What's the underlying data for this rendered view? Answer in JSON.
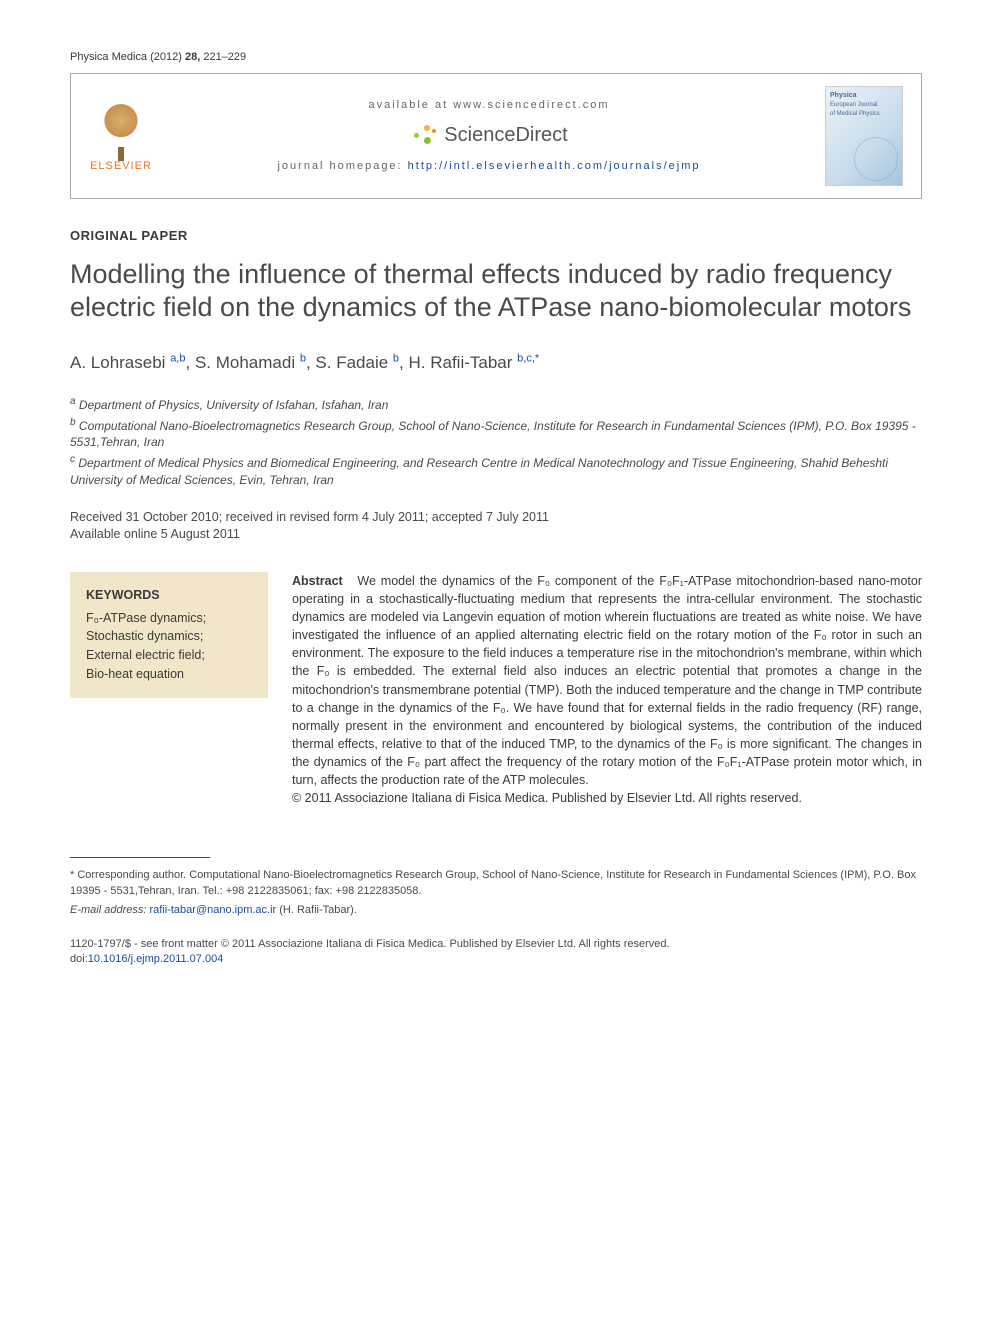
{
  "citation": {
    "journal": "Physica Medica",
    "year": "(2012)",
    "volume": "28,",
    "pages": "221–229"
  },
  "header": {
    "elsevier": "ELSEVIER",
    "available": "available at www.sciencedirect.com",
    "sciencedirect": "ScienceDirect",
    "homepage_label": "journal homepage: ",
    "homepage_url": "http://intl.elsevierhealth.com/journals/ejmp",
    "cover_line1": "Physica",
    "cover_line2": "European Journal",
    "cover_line3": "of Medical Physics"
  },
  "paper_type": "ORIGINAL PAPER",
  "title": "Modelling the influence of thermal effects induced by radio frequency electric field on the dynamics of the ATPase nano-biomolecular motors",
  "authors": [
    {
      "name": "A. Lohrasebi",
      "aff": "a,b"
    },
    {
      "name": "S. Mohamadi",
      "aff": "b"
    },
    {
      "name": "S. Fadaie",
      "aff": "b"
    },
    {
      "name": "H. Rafii-Tabar",
      "aff": "b,c,*"
    }
  ],
  "affiliations": {
    "a": "Department of Physics, University of Isfahan, Isfahan, Iran",
    "b": "Computational Nano-Bioelectromagnetics Research Group, School of Nano-Science, Institute for Research in Fundamental Sciences (IPM), P.O. Box 19395 - 5531,Tehran, Iran",
    "c": "Department of Medical Physics and Biomedical Engineering, and Research Centre in Medical Nanotechnology and Tissue Engineering, Shahid Beheshti University of Medical Sciences, Evin, Tehran, Iran"
  },
  "dates": {
    "line1": "Received 31 October 2010; received in revised form 4 July 2011; accepted 7 July 2011",
    "line2": "Available online 5 August 2011"
  },
  "keywords": {
    "heading": "KEYWORDS",
    "items": "F₀-ATPase dynamics;\nStochastic dynamics;\nExternal electric field;\nBio-heat equation"
  },
  "abstract": {
    "label": "Abstract",
    "text": "We model the dynamics of the F₀ component of the F₀F₁-ATPase mitochondrion-based nano-motor operating in a stochastically-fluctuating medium that represents the intra-cellular environment. The stochastic dynamics are modeled via Langevin equation of motion wherein fluctuations are treated as white noise. We have investigated the influence of an applied alternating electric field on the rotary motion of the F₀ rotor in such an environment. The exposure to the field induces a temperature rise in the mitochondrion's membrane, within which the F₀ is embedded. The external field also induces an electric potential that promotes a change in the mitochondrion's transmembrane potential (TMP). Both the induced temperature and the change in TMP contribute to a change in the dynamics of the F₀. We have found that for external fields in the radio frequency (RF) range, normally present in the environment and encountered by biological systems, the contribution of the induced thermal effects, relative to that of the induced TMP, to the dynamics of the F₀ is more significant. The changes in the dynamics of the F₀ part affect the frequency of the rotary motion of the F₀F₁-ATPase protein motor which, in turn, affects the production rate of the ATP molecules.",
    "rights": "© 2011 Associazione Italiana di Fisica Medica. Published by Elsevier Ltd. All rights reserved."
  },
  "footnote": {
    "corresp": "* Corresponding author. Computational Nano-Bioelectromagnetics Research Group, School of Nano-Science, Institute for Research in Fundamental Sciences (IPM), P.O. Box 19395 - 5531,Tehran, Iran. Tel.: +98 2122835061; fax: +98 2122835058.",
    "email_label": "E-mail address:",
    "email": "rafii-tabar@nano.ipm.ac.ir",
    "email_who": "(H. Rafii-Tabar)."
  },
  "copyright": {
    "issn": "1120-1797/$ - see front matter © 2011 Associazione Italiana di Fisica Medica. Published by Elsevier Ltd. All rights reserved.",
    "doi_label": "doi:",
    "doi": "10.1016/j.ejmp.2011.07.004"
  }
}
